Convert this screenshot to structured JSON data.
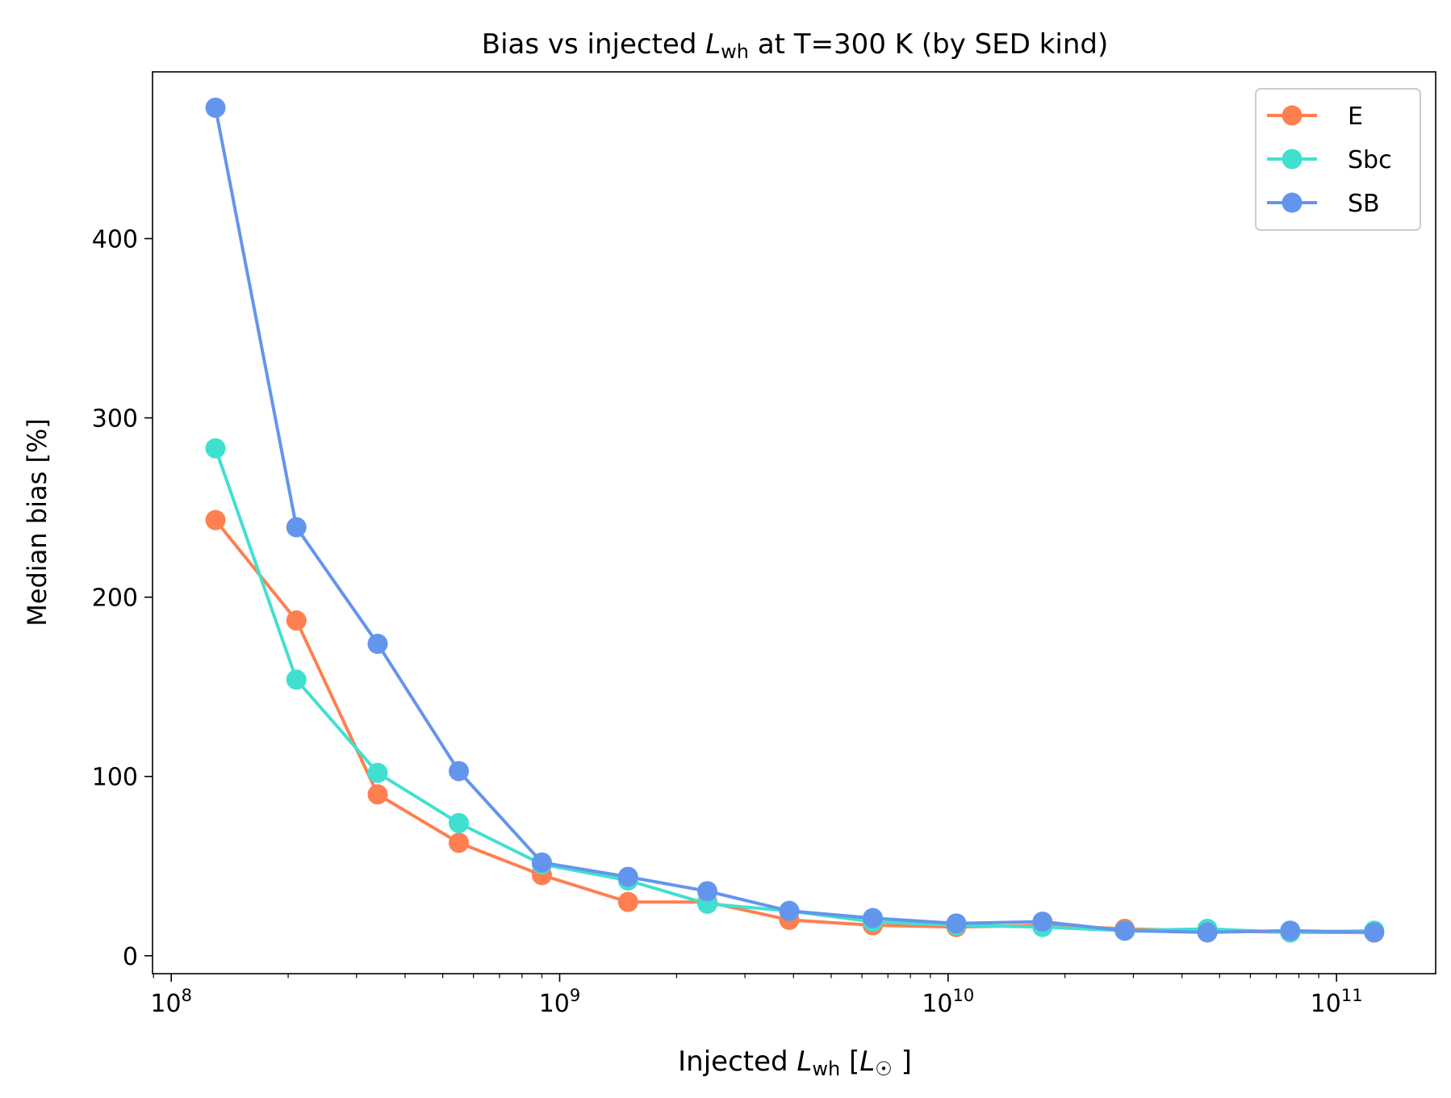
{
  "chart_data": {
    "type": "line",
    "title": "Bias vs injected L_wh at T=300 K (by SED kind)",
    "title_parts": {
      "prefix": "Bias vs injected ",
      "var": "L",
      "sub": "wh",
      "suffix": " at T=300 K (by SED kind)"
    },
    "xlabel": "Injected L_wh [L_☉]",
    "xlabel_parts": {
      "prefix": "Injected ",
      "var": "L",
      "sub": "wh",
      "bracket_open": " [",
      "unit_var": "L",
      "unit_sub": "☉",
      "bracket_close": " ]"
    },
    "ylabel": "Median bias [%]",
    "x_scale": "log",
    "xlim": [
      89500000.0,
      180000000000.0
    ],
    "ylim": [
      -10,
      493
    ],
    "x_ticks": [
      {
        "value": 100000000.0,
        "base": "10",
        "exp": "8"
      },
      {
        "value": 1000000000.0,
        "base": "10",
        "exp": "9"
      },
      {
        "value": 10000000000.0,
        "base": "10",
        "exp": "10"
      },
      {
        "value": 100000000000.0,
        "base": "10",
        "exp": "11"
      }
    ],
    "y_ticks": [
      {
        "value": 0,
        "label": "0"
      },
      {
        "value": 100,
        "label": "100"
      },
      {
        "value": 200,
        "label": "200"
      },
      {
        "value": 300,
        "label": "300"
      },
      {
        "value": 400,
        "label": "400"
      }
    ],
    "x": [
      130000000.0,
      210000000.0,
      340000000.0,
      550000000.0,
      900000000.0,
      1500000000.0,
      2400000000.0,
      3900000000.0,
      6400000000.0,
      10500000000.0,
      17500000000.0,
      28500000000.0,
      46500000000.0,
      76000000000.0,
      125000000000.0
    ],
    "series": [
      {
        "name": "E",
        "color": "#FF7F50",
        "values": [
          243,
          187,
          90,
          63,
          45,
          30,
          30,
          20,
          17,
          16,
          17,
          15,
          14,
          13,
          13
        ]
      },
      {
        "name": "Sbc",
        "color": "#40E0D0",
        "values": [
          283,
          154,
          102,
          74,
          51,
          42,
          29,
          25,
          19,
          17,
          16,
          14,
          15,
          13,
          14
        ]
      },
      {
        "name": "SB",
        "color": "#6495ED",
        "values": [
          473,
          239,
          174,
          103,
          52,
          44,
          36,
          25,
          21,
          18,
          19,
          14,
          13,
          14,
          13
        ]
      }
    ],
    "legend": {
      "position": "top-right",
      "entries": [
        "E",
        "Sbc",
        "SB"
      ]
    },
    "grid": false
  }
}
